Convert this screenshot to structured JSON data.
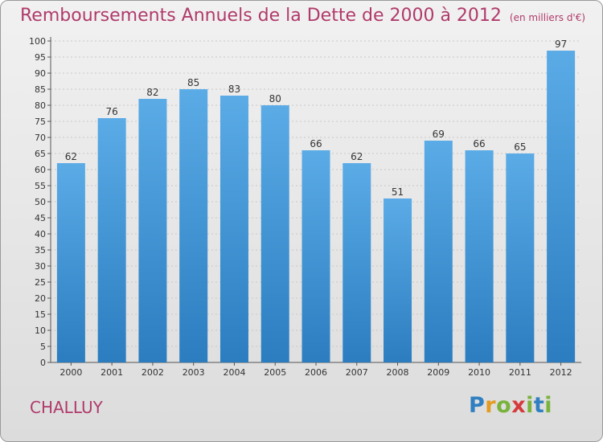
{
  "title": "Remboursements Annuels de la Dette de 2000 à 2012",
  "unit": "(en milliers d'€)",
  "commune": "CHALLUY",
  "logo": {
    "letters": [
      "P",
      "r",
      "o",
      "x",
      "i",
      "t",
      "i"
    ],
    "colors": [
      "#2f7fc1",
      "#e39b20",
      "#79b33b",
      "#d63b3b",
      "#79b33b",
      "#2f7fc1",
      "#79b33b"
    ]
  },
  "colors": {
    "bar_top": "#5aabe6",
    "bar_bottom": "#2b7dc0",
    "text": "#333333",
    "title": "#b03a6a"
  },
  "chart_data": {
    "type": "bar",
    "categories": [
      "2000",
      "2001",
      "2002",
      "2003",
      "2004",
      "2005",
      "2006",
      "2007",
      "2008",
      "2009",
      "2010",
      "2011",
      "2012"
    ],
    "values": [
      62,
      76,
      82,
      85,
      83,
      80,
      66,
      62,
      51,
      69,
      66,
      65,
      97
    ],
    "ylim": [
      0,
      100
    ],
    "ytick_step": 5,
    "grid": true,
    "data_labels": true
  }
}
